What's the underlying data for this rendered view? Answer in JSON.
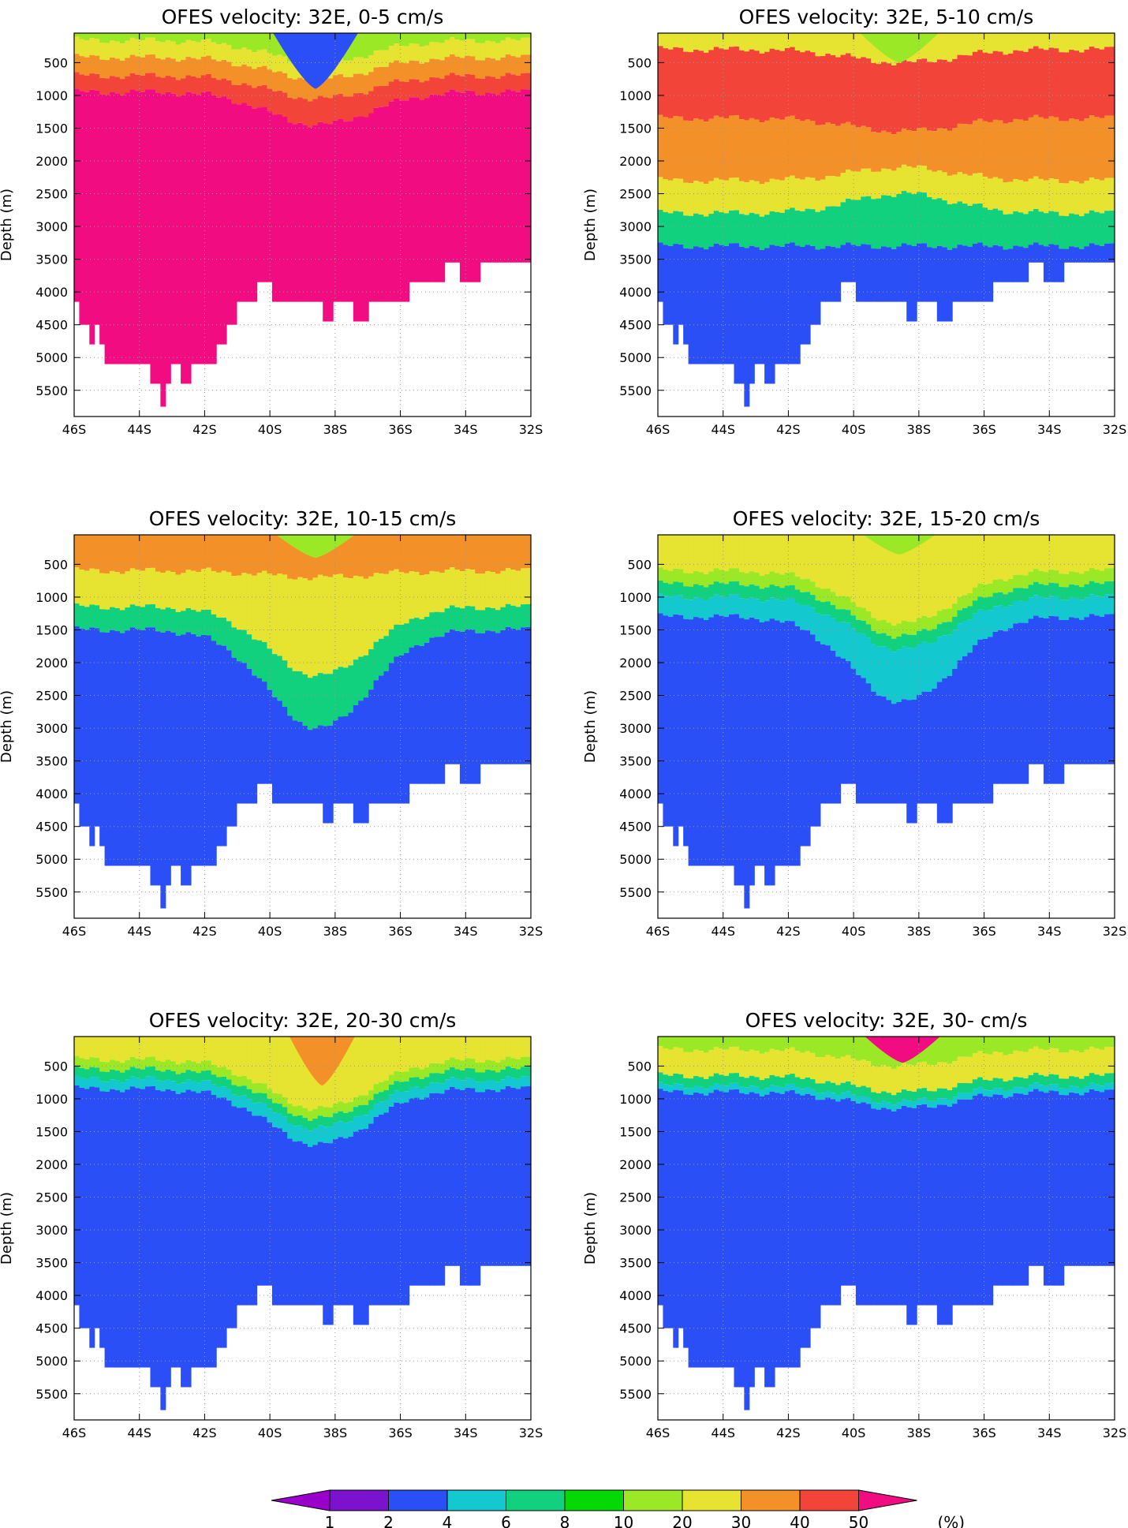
{
  "chart_data": {
    "type": "heatmap",
    "colorbar": {
      "levels": [
        "1",
        "2",
        "4",
        "6",
        "8",
        "10",
        "20",
        "30",
        "40",
        "50"
      ],
      "unit_label": "(%)",
      "colors": [
        "#9900cc",
        "#7b12ce",
        "#2b4ff6",
        "#14c8d0",
        "#11d17f",
        "#04d904",
        "#9be826",
        "#e6e331",
        "#f39128",
        "#f3443a",
        "#f20c82"
      ]
    },
    "xticks": [
      "46S",
      "44S",
      "42S",
      "40S",
      "38S",
      "36S",
      "34S",
      "32S"
    ],
    "yticks": [
      "500",
      "1000",
      "1500",
      "2000",
      "2500",
      "3000",
      "3500",
      "4000",
      "4500",
      "5000",
      "5500"
    ],
    "ylabel": "Depth (m)",
    "xlim": [
      -46,
      -32
    ],
    "ylim_depth": [
      5900,
      50
    ],
    "bathymetry_max_depth_by_lat": [
      [
        -46.0,
        4150
      ],
      [
        -45.8,
        4500
      ],
      [
        -45.6,
        4800
      ],
      [
        -45.4,
        4500
      ],
      [
        -45.2,
        4800
      ],
      [
        -45.0,
        5100
      ],
      [
        -44.5,
        5100
      ],
      [
        -44.0,
        5100
      ],
      [
        -43.7,
        5400
      ],
      [
        -43.4,
        5750
      ],
      [
        -43.2,
        5400
      ],
      [
        -43.0,
        5100
      ],
      [
        -42.7,
        5400
      ],
      [
        -42.4,
        5100
      ],
      [
        -42.0,
        5100
      ],
      [
        -41.6,
        4800
      ],
      [
        -41.3,
        4500
      ],
      [
        -41.0,
        4150
      ],
      [
        -40.4,
        3850
      ],
      [
        -40.0,
        4150
      ],
      [
        -39.0,
        4150
      ],
      [
        -38.4,
        4450
      ],
      [
        -38.0,
        4150
      ],
      [
        -37.4,
        4450
      ],
      [
        -37.0,
        4150
      ],
      [
        -36.4,
        4150
      ],
      [
        -35.8,
        3850
      ],
      [
        -35.0,
        3850
      ],
      [
        -34.6,
        3550
      ],
      [
        -34.2,
        3850
      ],
      [
        -33.6,
        3550
      ],
      [
        -32.0,
        3550
      ]
    ],
    "panels": [
      {
        "title": "OFES velocity: 32E, 0-5 cm/s",
        "layers": [
          {
            "level": "10",
            "depth": [
              60,
              160
            ],
            "lat_dip": [
              -38.5,
              500
            ]
          },
          {
            "level": "20",
            "depth": [
              160,
              420
            ],
            "lat_dip": [
              -38.5,
              750
            ]
          },
          {
            "level": "30",
            "depth": [
              420,
              700
            ],
            "lat_dip": [
              -38.5,
              1050
            ]
          },
          {
            "level": "40",
            "depth": [
              700,
              950
            ],
            "lat_dip": [
              -38.5,
              1450
            ]
          },
          {
            "level": "50",
            "depth": [
              950,
              6000
            ],
            "lat_dip": [
              -38.5,
              1800
            ]
          }
        ],
        "surface_minimum": {
          "lat": -38.6,
          "width": 2.6,
          "depth": 900,
          "level": "2"
        }
      },
      {
        "title": "OFES velocity: 32E, 5-10 cm/s",
        "layers": [
          {
            "level": "20",
            "depth": [
              60,
              300
            ],
            "lat_dip": [
              -38.5,
              500
            ]
          },
          {
            "level": "40",
            "depth": [
              300,
              1350
            ],
            "lat_dip": [
              -38.5,
              1550
            ]
          },
          {
            "level": "30",
            "depth": [
              1350,
              2300
            ],
            "lat_dip": [
              -38.5,
              2100
            ]
          },
          {
            "level": "20",
            "depth": [
              2300,
              2800
            ],
            "lat_dip": [
              -38.5,
              2500
            ]
          },
          {
            "level": "6",
            "depth": [
              2800,
              3300
            ],
            "lat_dip": [
              -38.5,
              3300
            ]
          },
          {
            "level": "2",
            "depth": [
              3300,
              6000
            ],
            "lat_dip": [
              -38.5,
              3800
            ]
          }
        ],
        "surface_minimum": {
          "lat": -38.6,
          "width": 2.4,
          "depth": 500,
          "level": "10"
        }
      },
      {
        "title": "OFES velocity: 32E, 10-15 cm/s",
        "layers": [
          {
            "level": "30",
            "depth": [
              60,
              600
            ],
            "lat_dip": [
              -38.5,
              700
            ]
          },
          {
            "level": "20",
            "depth": [
              600,
              1150
            ],
            "lat_dip": [
              -38.5,
              2200
            ]
          },
          {
            "level": "6",
            "depth": [
              1150,
              1500
            ],
            "lat_dip": [
              -38.5,
              3000
            ]
          },
          {
            "level": "2",
            "depth": [
              1500,
              6000
            ],
            "lat_dip": [
              -38.5,
              4200
            ]
          }
        ],
        "surface_minimum": {
          "lat": -38.6,
          "width": 2.4,
          "depth": 400,
          "level": "10"
        }
      },
      {
        "title": "OFES velocity: 32E, 15-20 cm/s",
        "layers": [
          {
            "level": "20",
            "depth": [
              60,
              600
            ],
            "lat_dip": [
              -38.5,
              1400
            ]
          },
          {
            "level": "10",
            "depth": [
              600,
              800
            ],
            "lat_dip": [
              -38.5,
              1600
            ]
          },
          {
            "level": "6",
            "depth": [
              800,
              1000
            ],
            "lat_dip": [
              -38.5,
              1800
            ]
          },
          {
            "level": "4",
            "depth": [
              1000,
              1300
            ],
            "lat_dip": [
              -38.5,
              2600
            ]
          },
          {
            "level": "2",
            "depth": [
              1300,
              6000
            ],
            "lat_dip": [
              -38.5,
              3400
            ]
          }
        ],
        "surface_minimum": {
          "lat": -38.6,
          "width": 2.2,
          "depth": 350,
          "level": "10"
        }
      },
      {
        "title": "OFES velocity: 32E, 20-30 cm/s",
        "layers": [
          {
            "level": "20",
            "depth": [
              60,
              400
            ],
            "lat_dip": [
              -38.5,
              1150
            ]
          },
          {
            "level": "10",
            "depth": [
              400,
              550
            ],
            "lat_dip": [
              -38.5,
              1300
            ]
          },
          {
            "level": "6",
            "depth": [
              550,
              700
            ],
            "lat_dip": [
              -38.5,
              1450
            ]
          },
          {
            "level": "4",
            "depth": [
              700,
              850
            ],
            "lat_dip": [
              -38.5,
              1700
            ]
          },
          {
            "level": "2",
            "depth": [
              850,
              6000
            ],
            "lat_dip": [
              -38.5,
              1700
            ]
          }
        ],
        "surface_minimum": {
          "lat": -38.4,
          "width": 2.0,
          "depth": 800,
          "level": "30"
        }
      },
      {
        "title": "OFES velocity: 32E, 30- cm/s",
        "layers": [
          {
            "level": "10",
            "depth": [
              60,
              250
            ],
            "lat_dip": [
              -38.5,
              500
            ]
          },
          {
            "level": "20",
            "depth": [
              250,
              650
            ],
            "lat_dip": [
              -38.5,
              900
            ]
          },
          {
            "level": "6",
            "depth": [
              650,
              800
            ],
            "lat_dip": [
              -38.5,
              1050
            ]
          },
          {
            "level": "4",
            "depth": [
              800,
              900
            ],
            "lat_dip": [
              -38.5,
              1150
            ]
          },
          {
            "level": "2",
            "depth": [
              900,
              6000
            ],
            "lat_dip": [
              -38.5,
              1200
            ]
          }
        ],
        "surface_minimum": {
          "lat": -38.5,
          "width": 2.3,
          "depth": 450,
          "level": "50"
        }
      }
    ]
  }
}
